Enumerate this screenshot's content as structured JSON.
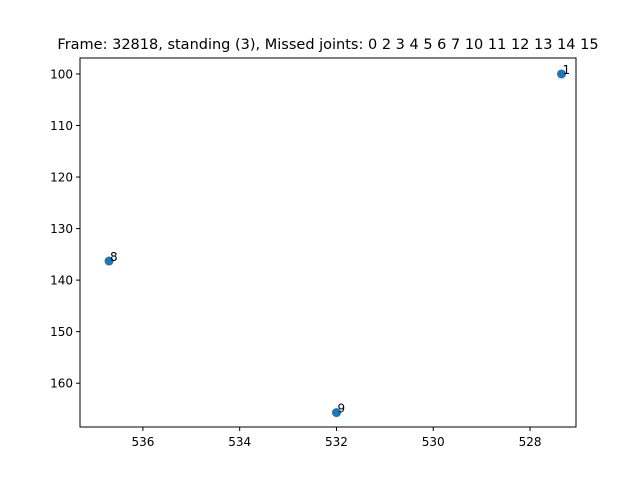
{
  "chart_data": {
    "type": "scatter",
    "title": "Frame: 32818, standing (3), Missed joints: 0  2  3  4  5  6  7  10  11  12  13  14  15",
    "xlabel": "",
    "ylabel": "",
    "xlim": [
      537.3,
      527.05
    ],
    "ylim": [
      168.5,
      96.9
    ],
    "x_inverted": true,
    "y_inverted": true,
    "grid": false,
    "x_ticks": [
      536,
      534,
      532,
      530,
      528
    ],
    "x_tick_labels": [
      "536",
      "534",
      "532",
      "530",
      "528"
    ],
    "y_ticks": [
      100,
      110,
      120,
      130,
      140,
      150,
      160
    ],
    "y_tick_labels": [
      "100",
      "110",
      "120",
      "130",
      "140",
      "150",
      "160"
    ],
    "points": [
      {
        "x": 527.35,
        "y": 100.0,
        "label": "1"
      },
      {
        "x": 536.7,
        "y": 136.3,
        "label": "8"
      },
      {
        "x": 532.0,
        "y": 165.7,
        "label": "9"
      }
    ],
    "marker_color": "#1f77b4"
  }
}
